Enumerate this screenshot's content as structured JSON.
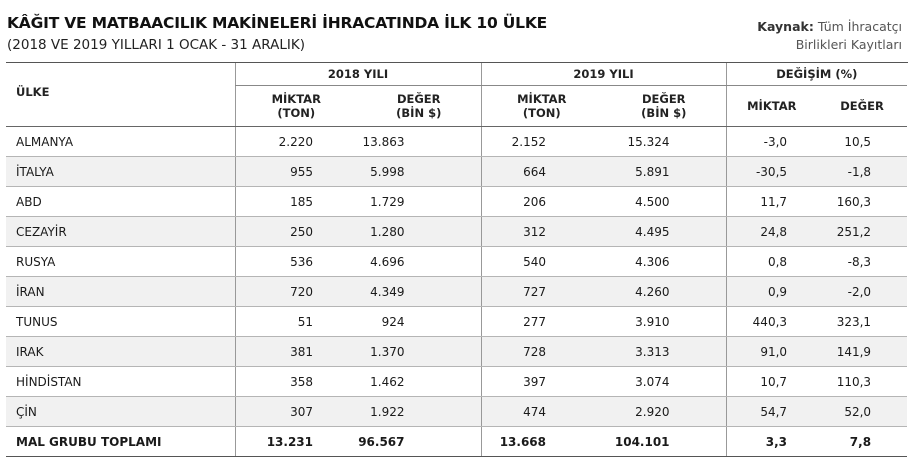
{
  "header": {
    "title": "KÂĞIT VE MATBAACILIK MAKİNELERİ İHRACATINDA İLK 10 ÜLKE",
    "subtitle": "(2018 VE 2019 YILLARI 1 OCAK - 31 ARALIK)",
    "source_label": "Kaynak:",
    "source_text_line1": "Tüm İhracatçı",
    "source_text_line2": "Birlikleri Kayıtları"
  },
  "table": {
    "country_header": "ÜLKE",
    "group_2018": "2018 YILI",
    "group_2019": "2019 YILI",
    "group_change": "DEĞİŞİM (%)",
    "col_qty_l1": "MİKTAR",
    "col_qty_l2": "(TON)",
    "col_val_l1": "DEĞER",
    "col_val_l2": "(BİN $)",
    "col_chg_qty": "MİKTAR",
    "col_chg_val": "DEĞER",
    "rows": [
      {
        "country": "ALMANYA",
        "q18": "2.220",
        "v18": "13.863",
        "q19": "2.152",
        "v19": "15.324",
        "cq": "-3,0",
        "cv": "10,5"
      },
      {
        "country": "İTALYA",
        "q18": "955",
        "v18": "5.998",
        "q19": "664",
        "v19": "5.891",
        "cq": "-30,5",
        "cv": "-1,8"
      },
      {
        "country": "ABD",
        "q18": "185",
        "v18": "1.729",
        "q19": "206",
        "v19": "4.500",
        "cq": "11,7",
        "cv": "160,3"
      },
      {
        "country": "CEZAYİR",
        "q18": "250",
        "v18": "1.280",
        "q19": "312",
        "v19": "4.495",
        "cq": "24,8",
        "cv": "251,2"
      },
      {
        "country": "RUSYA",
        "q18": "536",
        "v18": "4.696",
        "q19": "540",
        "v19": "4.306",
        "cq": "0,8",
        "cv": "-8,3"
      },
      {
        "country": "İRAN",
        "q18": "720",
        "v18": "4.349",
        "q19": "727",
        "v19": "4.260",
        "cq": "0,9",
        "cv": "-2,0"
      },
      {
        "country": "TUNUS",
        "q18": "51",
        "v18": "924",
        "q19": "277",
        "v19": "3.910",
        "cq": "440,3",
        "cv": "323,1"
      },
      {
        "country": "IRAK",
        "q18": "381",
        "v18": "1.370",
        "q19": "728",
        "v19": "3.313",
        "cq": "91,0",
        "cv": "141,9"
      },
      {
        "country": "HİNDİSTAN",
        "q18": "358",
        "v18": "1.462",
        "q19": "397",
        "v19": "3.074",
        "cq": "10,7",
        "cv": "110,3"
      },
      {
        "country": "ÇİN",
        "q18": "307",
        "v18": "1.922",
        "q19": "474",
        "v19": "2.920",
        "cq": "54,7",
        "cv": "52,0"
      }
    ],
    "total": {
      "country": "MAL GRUBU TOPLAMI",
      "q18": "13.231",
      "v18": "96.567",
      "q19": "13.668",
      "v19": "104.101",
      "cq": "3,3",
      "cv": "7,8"
    }
  }
}
